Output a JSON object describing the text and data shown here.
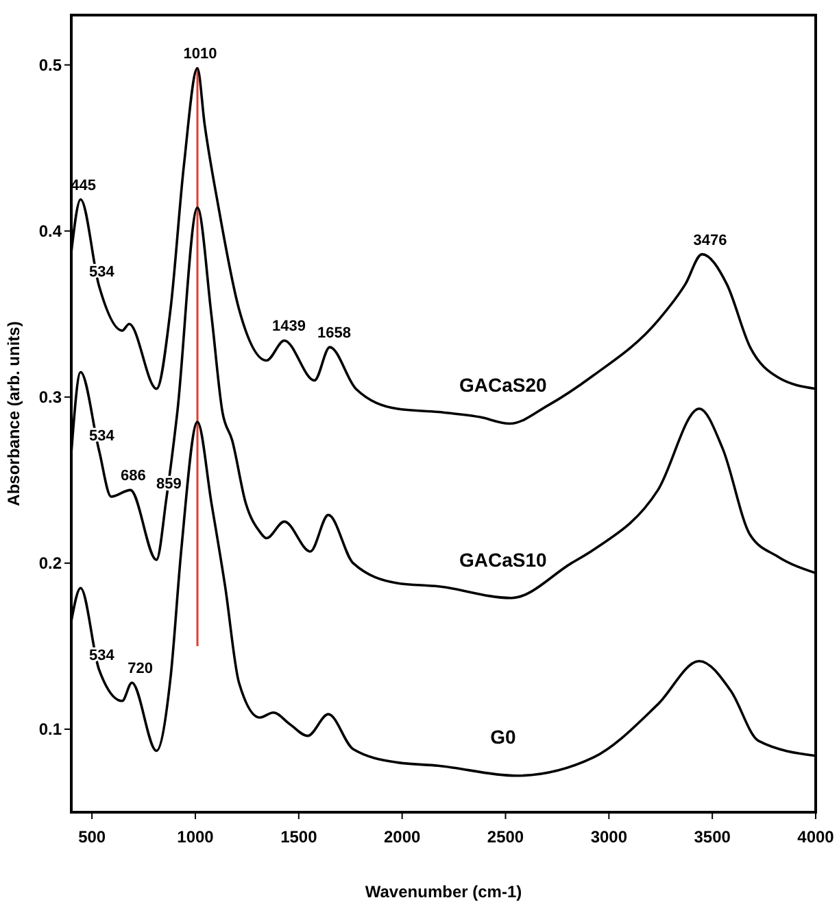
{
  "chart_data": {
    "type": "line",
    "xlabel": "Wavenumber (cm-1)",
    "ylabel": "Absorbance (arb. units)",
    "xlim": [
      400,
      4000
    ],
    "xticks": [
      500,
      1000,
      1500,
      2000,
      2500,
      3000,
      3500,
      4000
    ],
    "ylim": [
      0.05,
      0.53
    ],
    "yticks": [
      0.1,
      0.2,
      0.3,
      0.4,
      0.5
    ],
    "grid": false,
    "marker": "none",
    "line_style": "solid",
    "series": [
      {
        "name": "GACaS20",
        "color": "#000000",
        "x": [
          400,
          445,
          534,
          646,
          680,
          812,
          880,
          945,
          1010,
          1045,
          1111,
          1211,
          1344,
          1430,
          1576,
          1650,
          1776,
          1975,
          2175,
          2374,
          2520,
          2706,
          2925,
          3237,
          3370,
          3450,
          3570,
          3683,
          3816,
          4000
        ],
        "values": [
          0.387,
          0.419,
          0.367,
          0.34,
          0.344,
          0.305,
          0.353,
          0.44,
          0.498,
          0.464,
          0.415,
          0.353,
          0.322,
          0.334,
          0.31,
          0.33,
          0.305,
          0.293,
          0.291,
          0.288,
          0.284,
          0.295,
          0.313,
          0.346,
          0.368,
          0.386,
          0.368,
          0.33,
          0.312,
          0.305
        ]
      },
      {
        "name": "GACaS10",
        "color": "#000000",
        "x": [
          400,
          445,
          534,
          593,
          686,
          812,
          860,
          912,
          1010,
          1078,
          1131,
          1178,
          1244,
          1311,
          1344,
          1430,
          1556,
          1643,
          1763,
          1975,
          2175,
          2527,
          2819,
          2925,
          3237,
          3437,
          3550,
          3683,
          3816,
          4000
        ],
        "values": [
          0.266,
          0.315,
          0.268,
          0.24,
          0.244,
          0.202,
          0.239,
          0.29,
          0.414,
          0.349,
          0.291,
          0.274,
          0.236,
          0.219,
          0.215,
          0.225,
          0.207,
          0.229,
          0.2,
          0.188,
          0.186,
          0.179,
          0.2,
          0.208,
          0.244,
          0.293,
          0.269,
          0.217,
          0.204,
          0.194
        ]
      },
      {
        "name": "G0",
        "color": "#000000",
        "x": [
          400,
          445,
          534,
          646,
          693,
          812,
          880,
          932,
          1010,
          1078,
          1144,
          1211,
          1311,
          1377,
          1457,
          1543,
          1643,
          1763,
          1975,
          2175,
          2553,
          2925,
          3237,
          3437,
          3590,
          3723,
          4000
        ],
        "values": [
          0.165,
          0.185,
          0.136,
          0.117,
          0.128,
          0.087,
          0.131,
          0.208,
          0.285,
          0.236,
          0.186,
          0.128,
          0.107,
          0.11,
          0.103,
          0.096,
          0.109,
          0.088,
          0.08,
          0.078,
          0.072,
          0.083,
          0.115,
          0.141,
          0.123,
          0.093,
          0.084
        ]
      }
    ],
    "ref_lines": [
      {
        "axis": "x",
        "value": 1010,
        "color": "#e8392b"
      }
    ],
    "annotations": [
      {
        "text": "1010",
        "x": 1010,
        "y": 0.498
      },
      {
        "text": "445",
        "x": 445,
        "y": 0.419
      },
      {
        "text": "534",
        "x": 534,
        "y": 0.367
      },
      {
        "text": "1439",
        "x": 1439,
        "y": 0.334
      },
      {
        "text": "1658",
        "x": 1658,
        "y": 0.33
      },
      {
        "text": "3476",
        "x": 3476,
        "y": 0.386
      },
      {
        "text": "534",
        "x": 534,
        "y": 0.268
      },
      {
        "text": "686",
        "x": 686,
        "y": 0.244
      },
      {
        "text": "859",
        "x": 859,
        "y": 0.239
      },
      {
        "text": "534",
        "x": 534,
        "y": 0.136
      },
      {
        "text": "720",
        "x": 720,
        "y": 0.128
      }
    ]
  }
}
